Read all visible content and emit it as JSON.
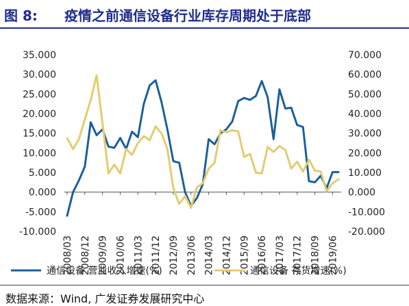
{
  "header": {
    "figure_label": "图 8:",
    "title": "疫情之前通信设备行业库存周期处于底部"
  },
  "footer": {
    "source": "数据来源：Wind, 广发证券发展研究中心"
  },
  "colors": {
    "title": "#1f2d8c",
    "series_revenue": "#1b5f9c",
    "series_inventory": "#e3cc6f"
  },
  "chart_data": {
    "type": "line",
    "left_axis": {
      "ylim": [
        -10,
        35
      ],
      "ticks": [
        "35.000",
        "30.000",
        "25.000",
        "20.000",
        "15.000",
        "10.000",
        "5.000",
        "0.000",
        "-5.000",
        "-10.000"
      ]
    },
    "right_axis": {
      "ylim": [
        -20,
        70
      ],
      "ticks": [
        "70.000",
        "60.000",
        "50.000",
        "40.000",
        "30.000",
        "20.000",
        "10.000",
        "0.000",
        "-10.000",
        "-20.000"
      ]
    },
    "x_ticks": [
      "2008/03",
      "2008/12",
      "2009/09",
      "2010/06",
      "2011/03",
      "2011/12",
      "2012/09",
      "2013/06",
      "2014/03",
      "2014/12",
      "2015/09",
      "2016/06",
      "2017/03",
      "2017/12",
      "2018/09",
      "2019/06"
    ],
    "grid": false,
    "legend_position": "bottom",
    "series": [
      {
        "name": "通信设备 营业收入增速(%)",
        "axis": "left",
        "x": [
          "2008/03",
          "2008/06",
          "2008/09",
          "2008/12",
          "2009/03",
          "2009/06",
          "2009/09",
          "2009/12",
          "2010/03",
          "2010/06",
          "2010/09",
          "2010/12",
          "2011/03",
          "2011/06",
          "2011/09",
          "2011/12",
          "2012/03",
          "2012/06",
          "2012/09",
          "2012/12",
          "2013/03",
          "2013/06",
          "2013/09",
          "2013/12",
          "2014/03",
          "2014/06",
          "2014/09",
          "2014/12",
          "2015/03",
          "2015/06",
          "2015/09",
          "2015/12",
          "2016/03",
          "2016/06",
          "2016/09",
          "2016/12",
          "2017/03",
          "2017/06",
          "2017/09",
          "2017/12",
          "2018/03",
          "2018/06",
          "2018/09",
          "2018/12",
          "2019/03",
          "2019/06",
          "2019/09"
        ],
        "values": [
          -6.0,
          0.0,
          3.0,
          6.5,
          17.8,
          14.5,
          16.0,
          11.6,
          11.3,
          13.8,
          11.0,
          15.4,
          14.0,
          22.5,
          27.2,
          28.5,
          23.0,
          16.0,
          7.9,
          7.5,
          0.0,
          -3.5,
          -1.5,
          2.0,
          13.5,
          12.2,
          15.0,
          16.0,
          18.0,
          23.2,
          24.0,
          23.5,
          24.5,
          28.3,
          24.2,
          13.5,
          26.2,
          21.3,
          21.5,
          17.1,
          16.6,
          2.8,
          2.5,
          4.2,
          1.0,
          5.1,
          5.1
        ]
      },
      {
        "name": "通信设备 存货增速(%)",
        "axis": "right",
        "x": [
          "2008/03",
          "2008/06",
          "2008/09",
          "2008/12",
          "2009/03",
          "2009/06",
          "2009/09",
          "2009/12",
          "2010/03",
          "2010/06",
          "2010/09",
          "2010/12",
          "2011/03",
          "2011/06",
          "2011/09",
          "2011/12",
          "2012/03",
          "2012/06",
          "2012/09",
          "2012/12",
          "2013/03",
          "2013/06",
          "2013/09",
          "2013/12",
          "2014/03",
          "2014/06",
          "2014/09",
          "2014/12",
          "2015/03",
          "2015/06",
          "2015/09",
          "2015/12",
          "2016/03",
          "2016/06",
          "2016/09",
          "2016/12",
          "2017/03",
          "2017/06",
          "2017/09",
          "2017/12",
          "2018/03",
          "2018/06",
          "2018/09",
          "2018/12",
          "2019/03",
          "2019/06",
          "2019/09"
        ],
        "values": [
          27.5,
          22.0,
          27.0,
          37.0,
          47.0,
          59.5,
          35.0,
          9.5,
          14.0,
          9.5,
          22.0,
          19.0,
          25.0,
          28.5,
          26.5,
          33.5,
          30.0,
          22.0,
          2.0,
          -6.0,
          -2.0,
          -8.0,
          2.5,
          4.5,
          12.0,
          15.0,
          31.5,
          30.5,
          31.5,
          31.0,
          18.0,
          19.5,
          10.0,
          9.5,
          23.0,
          20.5,
          23.5,
          21.5,
          12.0,
          15.5,
          10.5,
          16.5,
          11.0,
          10.5,
          0.5,
          4.5,
          6.5
        ]
      }
    ]
  }
}
